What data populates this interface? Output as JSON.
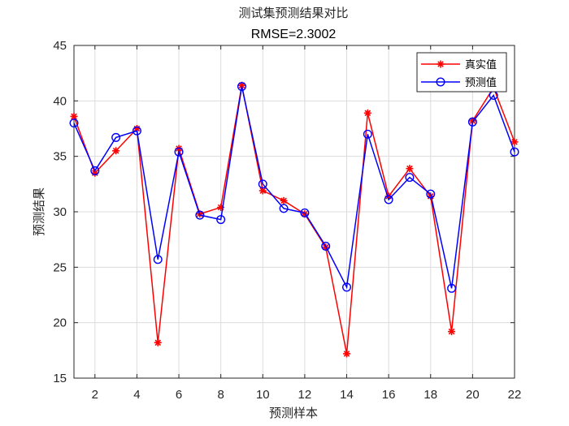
{
  "chart_data": {
    "type": "line",
    "title": "测试集预测结果对比",
    "subtitle": "RMSE=2.3002",
    "xlabel": "预测样本",
    "ylabel": "预测结果",
    "xlim": [
      1,
      22
    ],
    "ylim": [
      15,
      45
    ],
    "xticks": [
      2,
      4,
      6,
      8,
      10,
      12,
      14,
      16,
      18,
      20,
      22
    ],
    "yticks": [
      15,
      20,
      25,
      30,
      35,
      40,
      45
    ],
    "grid": true,
    "legend_position": "top-right",
    "x": [
      1,
      2,
      3,
      4,
      5,
      6,
      7,
      8,
      9,
      10,
      11,
      12,
      13,
      14,
      15,
      16,
      17,
      18,
      19,
      20,
      21,
      22
    ],
    "series": [
      {
        "name": "真实值",
        "color": "#ff0000",
        "marker": "asterisk",
        "values": [
          38.6,
          33.5,
          35.5,
          37.5,
          18.2,
          35.7,
          29.8,
          30.4,
          41.4,
          31.9,
          31.0,
          29.8,
          26.8,
          17.2,
          38.9,
          31.4,
          33.9,
          31.4,
          19.2,
          38.2,
          41.2,
          36.3
        ]
      },
      {
        "name": "预测值",
        "color": "#0000ff",
        "marker": "circle",
        "values": [
          38.0,
          33.7,
          36.7,
          37.3,
          25.7,
          35.4,
          29.7,
          29.3,
          41.3,
          32.5,
          30.3,
          29.9,
          26.9,
          23.2,
          37.0,
          31.1,
          33.1,
          31.6,
          23.1,
          38.1,
          40.5,
          35.4
        ]
      }
    ]
  }
}
